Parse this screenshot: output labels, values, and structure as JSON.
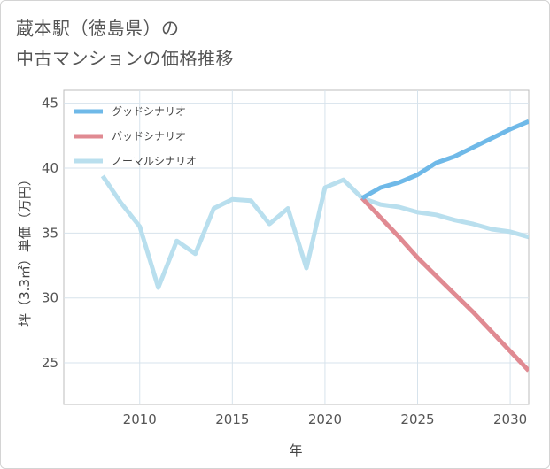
{
  "title_lines": [
    "蔵本駅（徳島県）の",
    "中古マンションの価格推移"
  ],
  "chart_data": {
    "type": "line",
    "title": "蔵本駅（徳島県）の中古マンションの価格推移",
    "xlabel": "年",
    "ylabel": "坪（3.3㎡）単価（万円）",
    "xlim": [
      2005.9,
      2031
    ],
    "ylim": [
      21.8,
      46
    ],
    "xticks": [
      2010,
      2015,
      2020,
      2025,
      2030
    ],
    "yticks": [
      25,
      30,
      35,
      40,
      45
    ],
    "grid": true,
    "legend_position": "top-left",
    "series": [
      {
        "name": "グッドシナリオ",
        "color": "#6fb9e8",
        "x": [
          2022,
          2023,
          2024,
          2025,
          2026,
          2027,
          2028,
          2029,
          2030,
          2031
        ],
        "values": [
          37.7,
          38.5,
          38.9,
          39.5,
          40.4,
          40.9,
          41.6,
          42.3,
          43.0,
          43.6
        ]
      },
      {
        "name": "バッドシナリオ",
        "color": "#e08a92",
        "x": [
          2022,
          2023,
          2024,
          2025,
          2026,
          2027,
          2028,
          2029,
          2030,
          2031
        ],
        "values": [
          37.7,
          36.2,
          34.7,
          33.1,
          31.7,
          30.3,
          28.9,
          27.4,
          25.9,
          24.4
        ]
      },
      {
        "name": "ノーマルシナリオ",
        "color": "#b9dfee",
        "x": [
          2008,
          2009,
          2010,
          2011,
          2012,
          2013,
          2014,
          2015,
          2016,
          2017,
          2018,
          2019,
          2020,
          2021,
          2022,
          2023,
          2024,
          2025,
          2026,
          2027,
          2028,
          2029,
          2030,
          2031
        ],
        "values": [
          39.4,
          37.3,
          35.5,
          30.8,
          34.4,
          33.4,
          36.9,
          37.6,
          37.5,
          35.7,
          36.9,
          32.3,
          38.5,
          39.1,
          37.7,
          37.2,
          37.0,
          36.6,
          36.4,
          36.0,
          35.7,
          35.3,
          35.1,
          34.7
        ]
      }
    ]
  }
}
